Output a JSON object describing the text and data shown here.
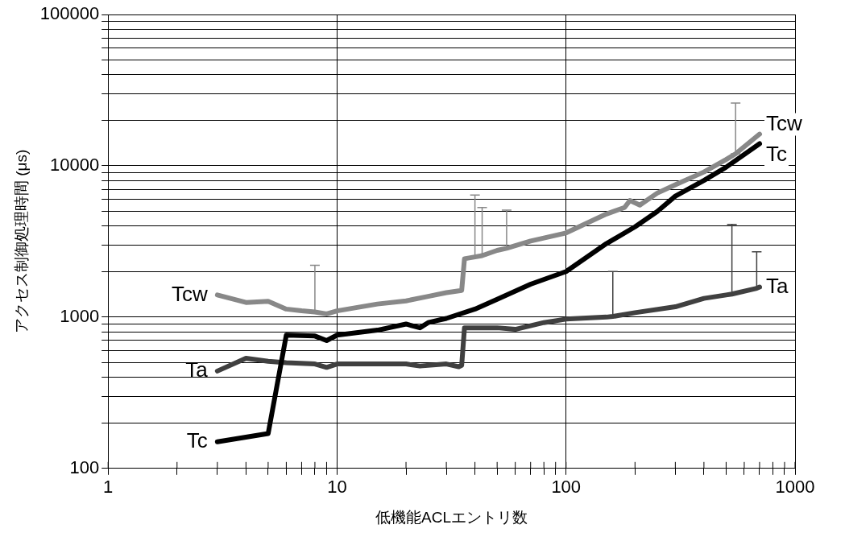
{
  "chart_data": {
    "type": "line",
    "xlabel": "低機能ACLエントリ数",
    "ylabel": "アクセス制御処理時間 (μs)",
    "log": "xy",
    "grid": true,
    "legend": false,
    "marker": "none",
    "line_style": "solid",
    "xlim": [
      1,
      1000
    ],
    "xticks": [
      1,
      {
        "value": 2,
        "label": null
      },
      {
        "value": 3,
        "label": null
      },
      {
        "value": 4,
        "label": null
      },
      {
        "value": 5,
        "label": null
      },
      {
        "value": 6,
        "label": null
      },
      {
        "value": 7,
        "label": null
      },
      {
        "value": 8,
        "label": null
      },
      {
        "value": 9,
        "label": null
      },
      10,
      {
        "value": 20,
        "label": null
      },
      {
        "value": 30,
        "label": null
      },
      {
        "value": 40,
        "label": null
      },
      {
        "value": 50,
        "label": null
      },
      {
        "value": 60,
        "label": null
      },
      {
        "value": 70,
        "label": null
      },
      {
        "value": 80,
        "label": null
      },
      {
        "value": 90,
        "label": null
      },
      100,
      {
        "value": 200,
        "label": null
      },
      {
        "value": 300,
        "label": null
      },
      {
        "value": 400,
        "label": null
      },
      {
        "value": 500,
        "label": null
      },
      {
        "value": 600,
        "label": null
      },
      {
        "value": 700,
        "label": null
      },
      {
        "value": 800,
        "label": null
      },
      {
        "value": 900,
        "label": null
      },
      1000
    ],
    "ylim": [
      100,
      100000
    ],
    "yticks": [
      100,
      {
        "value": 200,
        "label": null
      },
      {
        "value": 300,
        "label": null
      },
      {
        "value": 400,
        "label": null
      },
      {
        "value": 500,
        "label": null
      },
      {
        "value": 600,
        "label": null
      },
      {
        "value": 700,
        "label": null
      },
      {
        "value": 800,
        "label": null
      },
      {
        "value": 900,
        "label": null
      },
      1000,
      {
        "value": 2000,
        "label": null
      },
      {
        "value": 3000,
        "label": null
      },
      {
        "value": 4000,
        "label": null
      },
      {
        "value": 5000,
        "label": null
      },
      {
        "value": 6000,
        "label": null
      },
      {
        "value": 7000,
        "label": null
      },
      {
        "value": 8000,
        "label": null
      },
      {
        "value": 9000,
        "label": null
      },
      10000,
      {
        "value": 20000,
        "label": null
      },
      {
        "value": 30000,
        "label": null
      },
      {
        "value": 40000,
        "label": null
      },
      {
        "value": 50000,
        "label": null
      },
      {
        "value": 60000,
        "label": null
      },
      {
        "value": 70000,
        "label": null
      },
      {
        "value": 80000,
        "label": null
      },
      {
        "value": 90000,
        "label": null
      },
      100000
    ],
    "series": [
      {
        "name": "Tcw",
        "color": "#888888",
        "x": [
          3,
          4,
          5,
          6,
          7,
          8,
          9,
          10,
          15,
          20,
          25,
          30,
          35,
          36,
          40,
          43,
          50,
          55,
          70,
          100,
          150,
          180,
          190,
          210,
          250,
          300,
          400,
          500,
          550,
          700
        ],
        "values": [
          1400,
          1250,
          1270,
          1130,
          1100,
          1080,
          1050,
          1100,
          1220,
          1280,
          1370,
          1450,
          1500,
          2430,
          2500,
          2550,
          2760,
          2850,
          3180,
          3600,
          4800,
          5300,
          5900,
          5500,
          6600,
          7500,
          9100,
          11000,
          12000,
          16200
        ],
        "errors": [
          null,
          null,
          null,
          null,
          null,
          [
            1080,
            2200
          ],
          null,
          null,
          null,
          null,
          null,
          null,
          null,
          null,
          [
            2500,
            6400
          ],
          [
            2550,
            5300
          ],
          null,
          [
            2850,
            5100
          ],
          null,
          null,
          null,
          null,
          null,
          null,
          null,
          null,
          null,
          null,
          [
            12000,
            26000
          ],
          null
        ]
      },
      {
        "name": "Tc",
        "color": "#000000",
        "x": [
          3,
          5,
          6,
          8,
          9,
          10,
          15,
          20,
          23,
          25,
          30,
          40,
          50,
          70,
          100,
          150,
          200,
          250,
          300,
          400,
          500,
          700
        ],
        "values": [
          150,
          170,
          760,
          750,
          700,
          760,
          820,
          900,
          850,
          920,
          980,
          1130,
          1310,
          1650,
          2000,
          3060,
          3950,
          4980,
          6300,
          8000,
          9800,
          14000
        ]
      },
      {
        "name": "Ta",
        "color": "#404040",
        "x": [
          3,
          4,
          5,
          6,
          8,
          9,
          10,
          20,
          23,
          30,
          34,
          35,
          36,
          50,
          60,
          80,
          100,
          150,
          160,
          200,
          300,
          400,
          500,
          530,
          680,
          700
        ],
        "values": [
          440,
          535,
          510,
          500,
          490,
          465,
          490,
          490,
          475,
          490,
          470,
          480,
          850,
          850,
          830,
          920,
          970,
          1000,
          1010,
          1070,
          1170,
          1330,
          1400,
          1420,
          1550,
          1580
        ],
        "errors": [
          null,
          null,
          null,
          null,
          null,
          null,
          null,
          null,
          null,
          null,
          null,
          null,
          null,
          null,
          null,
          null,
          null,
          null,
          [
            1010,
            2000
          ],
          null,
          null,
          null,
          null,
          [
            1420,
            4100
          ],
          [
            1550,
            2700
          ],
          null
        ]
      }
    ]
  }
}
